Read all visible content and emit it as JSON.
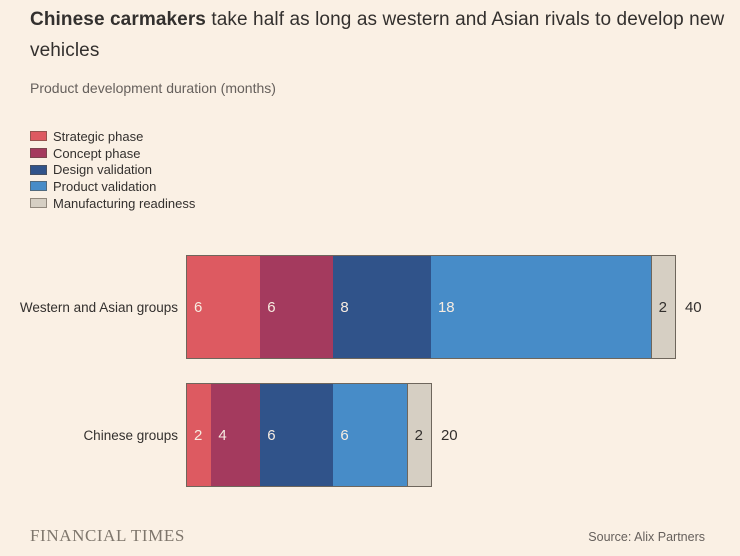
{
  "title": {
    "bold": "Chinese carmakers",
    "rest": " take half as long as western and Asian rivals to develop new vehicles"
  },
  "subtitle": "Product development duration (months)",
  "chart_data": {
    "type": "bar",
    "orientation": "horizontal",
    "stacked": true,
    "unit": "months",
    "title": "Chinese carmakers take half as long as western and Asian rivals to develop new vehicles",
    "subtitle": "Product development duration (months)",
    "legend_position": "top-left",
    "grid": false,
    "xlim": [
      0,
      40
    ],
    "categories": [
      "Western and Asian groups",
      "Chinese groups"
    ],
    "series": [
      {
        "name": "Strategic phase",
        "color": "#dd5a61",
        "value_text_color": "#f7ece1",
        "values": [
          6,
          2
        ]
      },
      {
        "name": "Concept phase",
        "color": "#a43a5e",
        "value_text_color": "#f7ece1",
        "values": [
          6,
          4
        ]
      },
      {
        "name": "Design validation",
        "color": "#30538a",
        "value_text_color": "#f7ece1",
        "values": [
          8,
          6
        ]
      },
      {
        "name": "Product validation",
        "color": "#478cc8",
        "value_text_color": "#f7ece1",
        "values": [
          18,
          6
        ]
      },
      {
        "name": "Manufacturing readiness",
        "color": "#d6cfc3",
        "value_text_color": "#33302e",
        "values": [
          2,
          2
        ]
      }
    ],
    "totals": [
      40,
      20
    ]
  },
  "colors": {
    "background": "#faf0e4",
    "text_dark": "#33302e",
    "text_muted": "#66605c",
    "bar_border": "#6e665c"
  },
  "footer": {
    "brand": "FINANCIAL TIMES",
    "source": "Source: Alix Partners"
  }
}
